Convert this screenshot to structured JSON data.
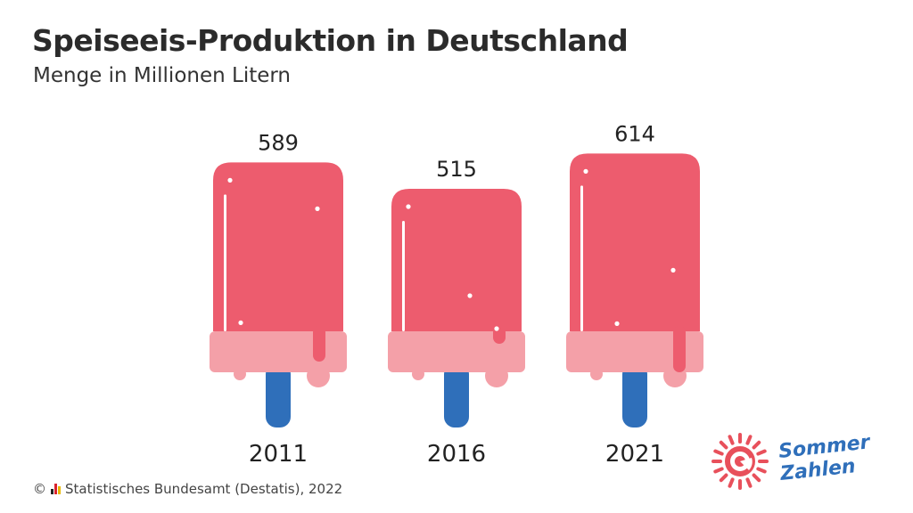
{
  "title": "Speiseeis-Produktion in Deutschland",
  "subtitle": "Menge in Millionen Litern",
  "footer": {
    "copyright": "©",
    "source": "Statistisches Bundesamt (Destatis), 2022"
  },
  "logo": {
    "line1": "Sommer",
    "line2": "Zahlen"
  },
  "colors": {
    "ice_top": "#ed5c6e",
    "ice_bottom": "#f4a0a8",
    "stick": "#2f6fba",
    "logo_red": "#e8505b",
    "logo_blue": "#2f6fba"
  },
  "chart_data": {
    "type": "bar",
    "categories": [
      "2011",
      "2016",
      "2021"
    ],
    "values": [
      589,
      515,
      614
    ]
  }
}
